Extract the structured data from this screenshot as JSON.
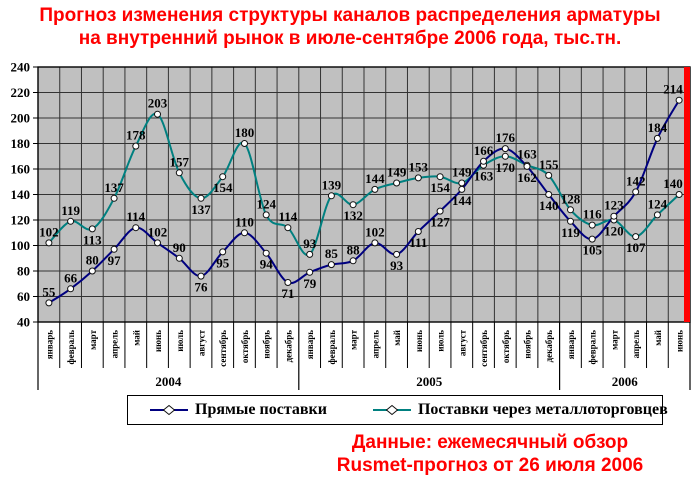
{
  "title": {
    "line1": "Прогноз изменения структуры каналов распределения арматуры",
    "line2": "на внутренний рынок в июле-сентябре 2006 года, тыс.тн."
  },
  "source": {
    "line1": "Данные: ежемесячный обзор",
    "line2": "Rusmet-прогноз от 26 июля 2006"
  },
  "colors": {
    "title_red": "#FF0000",
    "plot_background": "#C0C0C0",
    "gridline": "#333333",
    "direct_series": "#000080",
    "traders_series": "#008080",
    "forecast_edge": "#FF0000"
  },
  "chart_data": {
    "type": "line",
    "title": "Прогноз изменения структуры каналов распределения арматуры на внутренний рынок в июле-сентябре 2006 года, тыс.тн.",
    "ylim": [
      40,
      240
    ],
    "yticks": [
      40,
      60,
      80,
      100,
      120,
      140,
      160,
      180,
      200,
      220,
      240
    ],
    "grid": true,
    "plot_bg": "#C0C0C0",
    "forecast_edge_color": "#FF0000",
    "month_labels": [
      "январь",
      "февраль",
      "март",
      "апрель",
      "май",
      "июнь",
      "июль",
      "август",
      "сентябрь",
      "октябрь",
      "ноябрь",
      "декабрь",
      "январь",
      "февраль",
      "март",
      "апрель",
      "май",
      "июнь",
      "июль",
      "август",
      "сентябрь",
      "октябрь",
      "ноябрь",
      "декабрь",
      "январь",
      "февраль",
      "март",
      "апрель",
      "май",
      "июнь"
    ],
    "year_groups": [
      {
        "label": "2004",
        "count": 12
      },
      {
        "label": "2005",
        "count": 12
      },
      {
        "label": "2006",
        "count": 6
      }
    ],
    "legend_position": "bottom",
    "series": [
      {
        "name": "Прямые поставки",
        "color": "#000080",
        "marker": "circle",
        "values": [
          55,
          66,
          80,
          97,
          114,
          102,
          90,
          76,
          95,
          110,
          94,
          71,
          79,
          85,
          88,
          102,
          93,
          111,
          127,
          144,
          166,
          176,
          162,
          140,
          119,
          105,
          123,
          142,
          184,
          214
        ],
        "label_side": [
          "a",
          "a",
          "a",
          "b",
          "a",
          "a",
          "a",
          "b",
          "b",
          "a",
          "b",
          "b",
          "b",
          "a",
          "a",
          "a",
          "b",
          "b",
          "b",
          "b",
          "a",
          "a",
          "b",
          "b",
          "b",
          "b",
          "a",
          "a",
          "a",
          "a"
        ]
      },
      {
        "name": "Поставки через металлоторговцев",
        "color": "#008080",
        "marker": "circle",
        "values": [
          102,
          119,
          113,
          137,
          178,
          203,
          157,
          137,
          154,
          180,
          124,
          114,
          93,
          139,
          132,
          144,
          149,
          153,
          154,
          149,
          163,
          170,
          163,
          155,
          128,
          116,
          120,
          107,
          124,
          140
        ],
        "label_side": [
          "a",
          "a",
          "b",
          "a",
          "a",
          "a",
          "a",
          "b",
          "b",
          "a",
          "a",
          "a",
          "a",
          "a",
          "b",
          "a",
          "a",
          "a",
          "b",
          "a",
          "b",
          "b",
          "a",
          "a",
          "a",
          "a",
          "b",
          "b",
          "a",
          "a"
        ]
      }
    ]
  }
}
